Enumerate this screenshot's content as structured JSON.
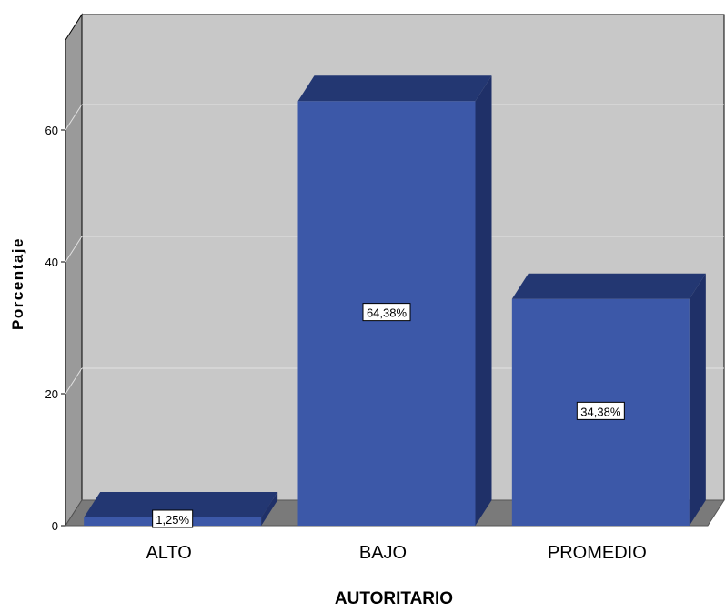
{
  "chart_data": {
    "type": "bar",
    "categories": [
      "ALTO",
      "BAJO",
      "PROMEDIO"
    ],
    "values": [
      1.25,
      64.38,
      34.38
    ],
    "data_labels": [
      "1,25%",
      "64,38%",
      "34,38%"
    ],
    "yticks": [
      0,
      20,
      40,
      60
    ],
    "ylim": [
      0,
      77.5
    ],
    "xlabel": "AUTORITARIO",
    "ylabel": "Porcentaje",
    "grid": true,
    "style": "3d",
    "colors": {
      "bar_front": "#3c58a8",
      "bar_top": "#233772",
      "bar_side": "#1f3068",
      "back_wall": "#c8c8c8",
      "floor": "#7a7a7a",
      "gridline": "#e2e2e2"
    }
  }
}
